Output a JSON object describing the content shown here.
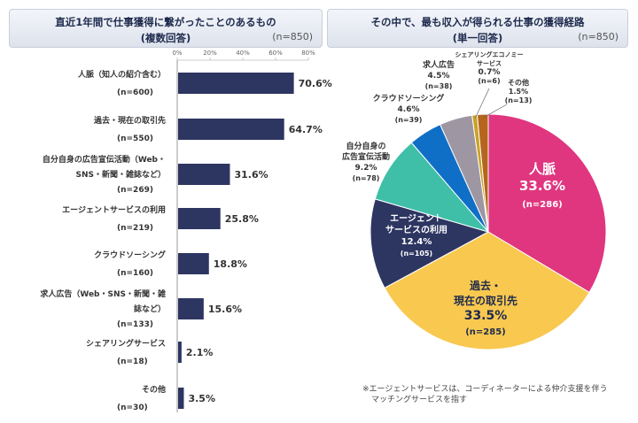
{
  "left_panel": {
    "title_line1": "直近1年間で仕事獲得に繋がったことのあるもの",
    "title_line2": "(複数回答)",
    "n_label": "(n=850)"
  },
  "right_panel": {
    "title_line1": "その中で、最も収入が得られる仕事の獲得経路",
    "title_line2": "(単一回答)",
    "n_label": "(n=850)"
  },
  "footnote": {
    "line1": "※エージェントサービスは、コーディネーターによる仲介支援を伴う",
    "line2": "マッチングサービスを指す"
  },
  "chart_data": [
    {
      "type": "bar",
      "orientation": "horizontal",
      "title": "直近1年間で仕事獲得に繋がったことのあるもの (複数回答)",
      "xlim": [
        0,
        80
      ],
      "x_ticks": [
        "0%",
        "20%",
        "40%",
        "60%",
        "80%"
      ],
      "bar_color": "#2d3561",
      "categories": [
        {
          "lines": [
            "人脈（知人の紹介含む）",
            "(n=600)"
          ],
          "value": 70.6,
          "label": "70.6%"
        },
        {
          "lines": [
            "過去・現在の取引先",
            "(n=550)"
          ],
          "value": 64.7,
          "label": "64.7%"
        },
        {
          "lines": [
            "自分自身の広告宣伝活動（Web・",
            "SNS・新聞・雑誌など）",
            "(n=269)"
          ],
          "value": 31.6,
          "label": "31.6%"
        },
        {
          "lines": [
            "エージェントサービスの利用",
            "(n=219)"
          ],
          "value": 25.8,
          "label": "25.8%"
        },
        {
          "lines": [
            "クラウドソーシング",
            "(n=160)"
          ],
          "value": 18.8,
          "label": "18.8%"
        },
        {
          "lines": [
            "求人広告（Web・SNS・新聞・雑",
            "誌など）",
            "(n=133)"
          ],
          "value": 15.6,
          "label": "15.6%"
        },
        {
          "lines": [
            "シェアリングサービス",
            "(n=18)"
          ],
          "value": 2.1,
          "label": "2.1%"
        },
        {
          "lines": [
            "その他",
            "(n=30)"
          ],
          "value": 3.5,
          "label": "3.5%"
        }
      ]
    },
    {
      "type": "pie",
      "title": "その中で、最も収入が得られる仕事の獲得経路 (単一回答)",
      "slices": [
        {
          "lines": [
            "人脈",
            "33.6%",
            "(n=286)"
          ],
          "value": 33.6,
          "color": "#e0367f"
        },
        {
          "lines": [
            "過去・",
            "現在の取引先",
            "33.5%",
            "(n=285)"
          ],
          "value": 33.5,
          "color": "#f9c84f"
        },
        {
          "lines": [
            "エージェント",
            "サービスの利用",
            "12.4%",
            "(n=105)"
          ],
          "value": 12.4,
          "color": "#2d3561"
        },
        {
          "lines": [
            "自分自身の",
            "広告宣伝活動",
            "9.2%",
            "(n=78)"
          ],
          "value": 9.2,
          "color": "#3fbfa8"
        },
        {
          "lines": [
            "クラウドソーシング",
            "4.6%",
            "(n=39)"
          ],
          "value": 4.6,
          "color": "#0f6fc6"
        },
        {
          "lines": [
            "求人広告",
            "4.5%",
            "(n=38)"
          ],
          "value": 4.5,
          "color": "#9e97a3"
        },
        {
          "lines": [
            "シェアリングエコノミー",
            "サービス",
            "0.7%",
            "(n=6)"
          ],
          "value": 0.7,
          "color": "#c9a227"
        },
        {
          "lines": [
            "その他",
            "1.5%",
            "(n=13)"
          ],
          "value": 1.5,
          "color": "#b5651d"
        }
      ]
    }
  ]
}
